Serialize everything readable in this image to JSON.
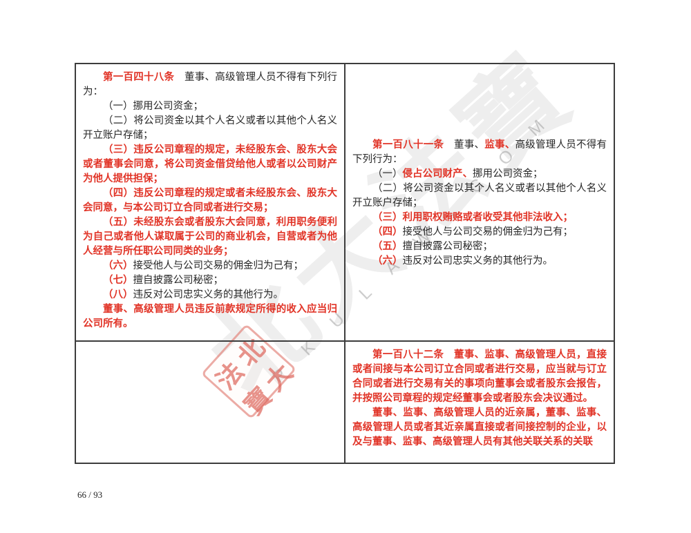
{
  "page": {
    "background": "#ffffff",
    "page_number": "66 / 93"
  },
  "colors": {
    "red_text": "#e13427",
    "black_text": "#262626",
    "table_border": "#3c3c3c",
    "stamp_red": "#de685e",
    "watermark_gray": "#bdbdbd"
  },
  "watermark": {
    "calligraphy_text": "北大法寶",
    "latin_text": "P K U L A W . C O M",
    "stamp_chars": [
      "法",
      "北",
      "寶",
      "大"
    ]
  },
  "table": {
    "cells": {
      "article_148": {
        "paragraphs": [
          [
            {
              "text": "第一百四十八条",
              "style": "red"
            },
            {
              "text": "　董事、高级管理人员不得有下列行为：",
              "style": "black"
            }
          ],
          [
            {
              "text": "（一）挪用公司资金；",
              "style": "black"
            }
          ],
          [
            {
              "text": "（二）将公司资金以其个人名义或者以其他个人名义开立账户存储；",
              "style": "black"
            }
          ],
          [
            {
              "text": "（三）违反公司章程的规定，未经股东会、股东大会或者董事会同意，将公司资金借贷给他人或者以公司财产为他人提供担保；",
              "style": "red"
            }
          ],
          [
            {
              "text": "（四）违反公司章程的规定或者未经股东会、股东大会同意，与本公司订立合同或者进行交易；",
              "style": "red"
            }
          ],
          [
            {
              "text": "（五）未经股东会或者股东大会同意，利用职务便利为自己或者他人谋取属于公司的商业机会，自营或者为他人经营与所任职公司同类的业务；",
              "style": "red"
            }
          ],
          [
            {
              "text": "（六）",
              "style": "red"
            },
            {
              "text": "接受他人与公司交易的佣金归为己有；",
              "style": "black"
            }
          ],
          [
            {
              "text": "（七）",
              "style": "red"
            },
            {
              "text": "擅自披露公司秘密；",
              "style": "black"
            }
          ],
          [
            {
              "text": "（八）",
              "style": "red"
            },
            {
              "text": "违反对公司忠实义务的其他行为。",
              "style": "black"
            }
          ],
          [
            {
              "text": "董事、高级管理人员违反前款规定所得的收入应当归公司所有。",
              "style": "red"
            }
          ]
        ]
      },
      "article_181": {
        "paragraphs": [
          [
            {
              "text": "第一百八十一条",
              "style": "red"
            },
            {
              "text": "　董事、",
              "style": "black"
            },
            {
              "text": "监事、",
              "style": "red"
            },
            {
              "text": "高级管理人员不得有下列行为：",
              "style": "black"
            }
          ],
          [
            {
              "text": "（一）",
              "style": "black"
            },
            {
              "text": "侵占公司财产、",
              "style": "red"
            },
            {
              "text": "挪用公司资金；",
              "style": "black"
            }
          ],
          [
            {
              "text": "（二）将公司资金以其个人名义或者以其他个人名义开立账户存储；",
              "style": "black"
            }
          ],
          [
            {
              "text": "（三）利用职权贿赂或者收受其他非法收入；",
              "style": "red"
            }
          ],
          [
            {
              "text": "（四）",
              "style": "red"
            },
            {
              "text": "接受他人与公司交易的佣金归为己有；",
              "style": "black"
            }
          ],
          [
            {
              "text": "（五）",
              "style": "red"
            },
            {
              "text": "擅自披露公司秘密；",
              "style": "black"
            }
          ],
          [
            {
              "text": "（六）",
              "style": "red"
            },
            {
              "text": "违反对公司忠实义务的其他行为。",
              "style": "black"
            }
          ]
        ]
      },
      "bottom_left": {
        "paragraphs": []
      },
      "article_182": {
        "paragraphs": [
          [
            {
              "text": "第一百八十二条　董事、监事、高级管理人员，直接或者间接与本公司订立合同或者进行交易，应当就与订立合同或者进行交易有关的事项向董事会或者股东会报告，并按照公司章程的规定经董事会或者股东会决议通过。",
              "style": "red"
            }
          ],
          [
            {
              "text": "董事、监事、高级管理人员的近亲属，董事、监事、高级管理人员或者其近亲属直接或者间接控制的企业，以及与董事、监事、高级管理人员有其他关联关系的关联",
              "style": "red"
            }
          ]
        ]
      }
    }
  }
}
